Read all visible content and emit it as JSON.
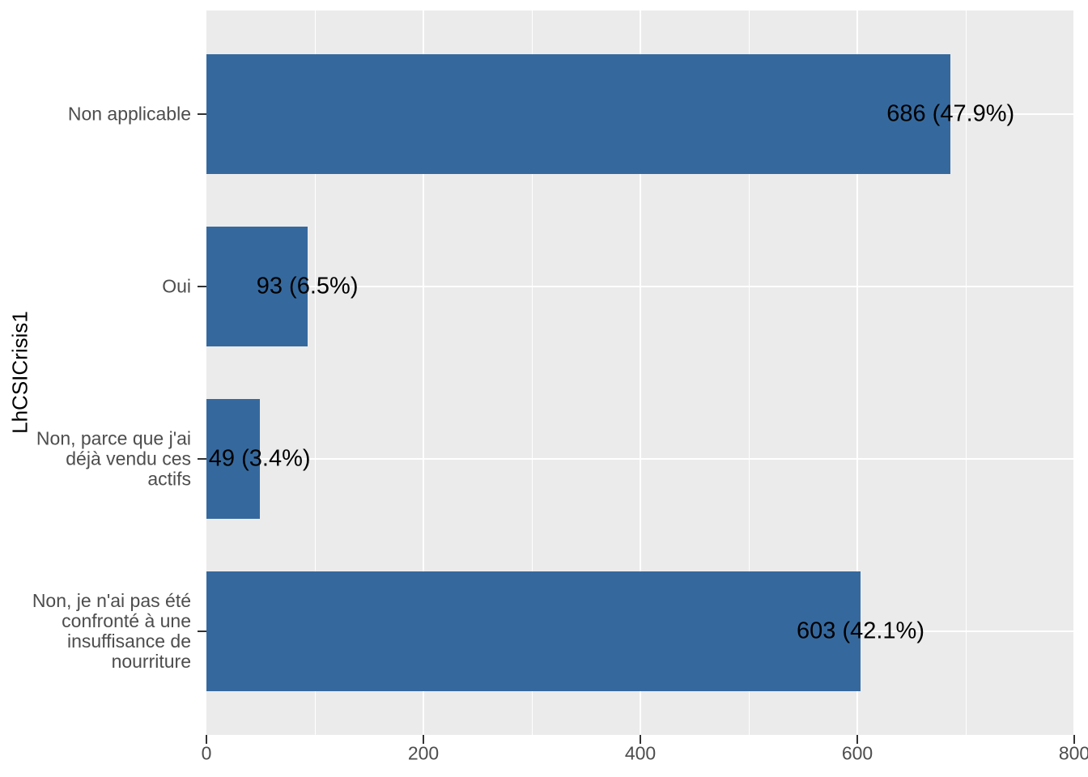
{
  "chart_data": {
    "type": "bar",
    "orientation": "horizontal",
    "title": "",
    "xlabel": "",
    "ylabel": "LhCSICrisis1",
    "xlim": [
      0,
      800
    ],
    "x_tick_labels": [
      "0",
      "200",
      "400",
      "600",
      "800"
    ],
    "x_tick_values": [
      0,
      200,
      400,
      600,
      800
    ],
    "x_minor_gridline_values": [
      100,
      300,
      500,
      700
    ],
    "grid": true,
    "legend": false,
    "colors": {
      "panel_bg": "#EBEBEB",
      "gridline": "#FFFFFF",
      "bar_fill": "#35699E",
      "axis_text": "#4D4D4D",
      "tick_mark": "#333333",
      "value_label": "#000000",
      "axis_title": "#000000"
    },
    "bars": [
      {
        "category": "Non applicable",
        "category_lines": [
          "Non applicable"
        ],
        "value": 686,
        "percent": 47.9,
        "value_label": "686 (47.9%)"
      },
      {
        "category": "Oui",
        "category_lines": [
          "Oui"
        ],
        "value": 93,
        "percent": 6.5,
        "value_label": "93 (6.5%)"
      },
      {
        "category": "Non, parce que j'ai déjà vendu ces actifs",
        "category_lines": [
          "Non, parce que j'ai",
          "déjà vendu ces",
          "actifs"
        ],
        "value": 49,
        "percent": 3.4,
        "value_label": "49 (3.4%)"
      },
      {
        "category": "Non, je n'ai pas été confronté à une insuffisance de nourriture",
        "category_lines": [
          "Non, je n'ai pas été",
          "confronté à une",
          "insuffisance de",
          "nourriture"
        ],
        "value": 603,
        "percent": 42.1,
        "value_label": "603 (42.1%)"
      }
    ]
  }
}
